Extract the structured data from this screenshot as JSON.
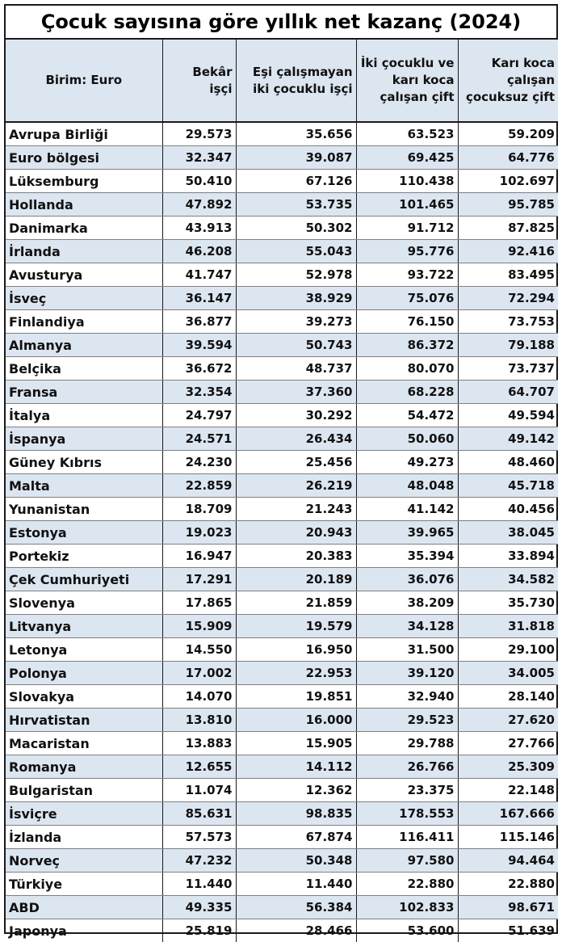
{
  "title": "Çocuk sayısına göre yıllık net kazanç (2024)",
  "columns": [
    "Birim: Euro",
    "Bekâr işçi",
    "Eşi çalışmayan iki çocuklu işçi",
    "İki çocuklu ve karı koca çalışan çift",
    "Karı koca çalışan çocuksuz çift"
  ],
  "rows": [
    {
      "country": "Avrupa Birliği",
      "values": [
        "29.573",
        "35.656",
        "63.523",
        "59.209"
      ]
    },
    {
      "country": "Euro bölgesi",
      "values": [
        "32.347",
        "39.087",
        "69.425",
        "64.776"
      ]
    },
    {
      "country": "Lüksemburg",
      "values": [
        "50.410",
        "67.126",
        "110.438",
        "102.697"
      ]
    },
    {
      "country": "Hollanda",
      "values": [
        "47.892",
        "53.735",
        "101.465",
        "95.785"
      ]
    },
    {
      "country": "Danimarka",
      "values": [
        "43.913",
        "50.302",
        "91.712",
        "87.825"
      ]
    },
    {
      "country": "İrlanda",
      "values": [
        "46.208",
        "55.043",
        "95.776",
        "92.416"
      ]
    },
    {
      "country": "Avusturya",
      "values": [
        "41.747",
        "52.978",
        "93.722",
        "83.495"
      ]
    },
    {
      "country": "İsveç",
      "values": [
        "36.147",
        "38.929",
        "75.076",
        "72.294"
      ]
    },
    {
      "country": "Finlandiya",
      "values": [
        "36.877",
        "39.273",
        "76.150",
        "73.753"
      ]
    },
    {
      "country": "Almanya",
      "values": [
        "39.594",
        "50.743",
        "86.372",
        "79.188"
      ]
    },
    {
      "country": "Belçika",
      "values": [
        "36.672",
        "48.737",
        "80.070",
        "73.737"
      ]
    },
    {
      "country": "Fransa",
      "values": [
        "32.354",
        "37.360",
        "68.228",
        "64.707"
      ]
    },
    {
      "country": "İtalya",
      "values": [
        "24.797",
        "30.292",
        "54.472",
        "49.594"
      ]
    },
    {
      "country": "İspanya",
      "values": [
        "24.571",
        "26.434",
        "50.060",
        "49.142"
      ]
    },
    {
      "country": "Güney Kıbrıs",
      "values": [
        "24.230",
        "25.456",
        "49.273",
        "48.460"
      ]
    },
    {
      "country": "Malta",
      "values": [
        "22.859",
        "26.219",
        "48.048",
        "45.718"
      ]
    },
    {
      "country": "Yunanistan",
      "values": [
        "18.709",
        "21.243",
        "41.142",
        "40.456"
      ]
    },
    {
      "country": "Estonya",
      "values": [
        "19.023",
        "20.943",
        "39.965",
        "38.045"
      ]
    },
    {
      "country": "Portekiz",
      "values": [
        "16.947",
        "20.383",
        "35.394",
        "33.894"
      ]
    },
    {
      "country": "Çek Cumhuriyeti",
      "values": [
        "17.291",
        "20.189",
        "36.076",
        "34.582"
      ]
    },
    {
      "country": "Slovenya",
      "values": [
        "17.865",
        "21.859",
        "38.209",
        "35.730"
      ]
    },
    {
      "country": "Litvanya",
      "values": [
        "15.909",
        "19.579",
        "34.128",
        "31.818"
      ]
    },
    {
      "country": "Letonya",
      "values": [
        "14.550",
        "16.950",
        "31.500",
        "29.100"
      ]
    },
    {
      "country": "Polonya",
      "values": [
        "17.002",
        "22.953",
        "39.120",
        "34.005"
      ]
    },
    {
      "country": "Slovakya",
      "values": [
        "14.070",
        "19.851",
        "32.940",
        "28.140"
      ]
    },
    {
      "country": "Hırvatistan",
      "values": [
        "13.810",
        "16.000",
        "29.523",
        "27.620"
      ]
    },
    {
      "country": "Macaristan",
      "values": [
        "13.883",
        "15.905",
        "29.788",
        "27.766"
      ]
    },
    {
      "country": "Romanya",
      "values": [
        "12.655",
        "14.112",
        "26.766",
        "25.309"
      ]
    },
    {
      "country": "Bulgaristan",
      "values": [
        "11.074",
        "12.362",
        "23.375",
        "22.148"
      ]
    },
    {
      "country": "İsviçre",
      "values": [
        "85.631",
        "98.835",
        "178.553",
        "167.666"
      ]
    },
    {
      "country": "İzlanda",
      "values": [
        "57.573",
        "67.874",
        "116.411",
        "115.146"
      ]
    },
    {
      "country": "Norveç",
      "values": [
        "47.232",
        "50.348",
        "97.580",
        "94.464"
      ]
    },
    {
      "country": "Türkiye",
      "values": [
        "11.440",
        "11.440",
        "22.880",
        "22.880"
      ]
    },
    {
      "country": "ABD",
      "values": [
        "49.335",
        "56.384",
        "102.833",
        "98.671"
      ]
    },
    {
      "country": "Japonya",
      "values": [
        "25.819",
        "28.466",
        "53.600",
        "51.639"
      ]
    }
  ]
}
